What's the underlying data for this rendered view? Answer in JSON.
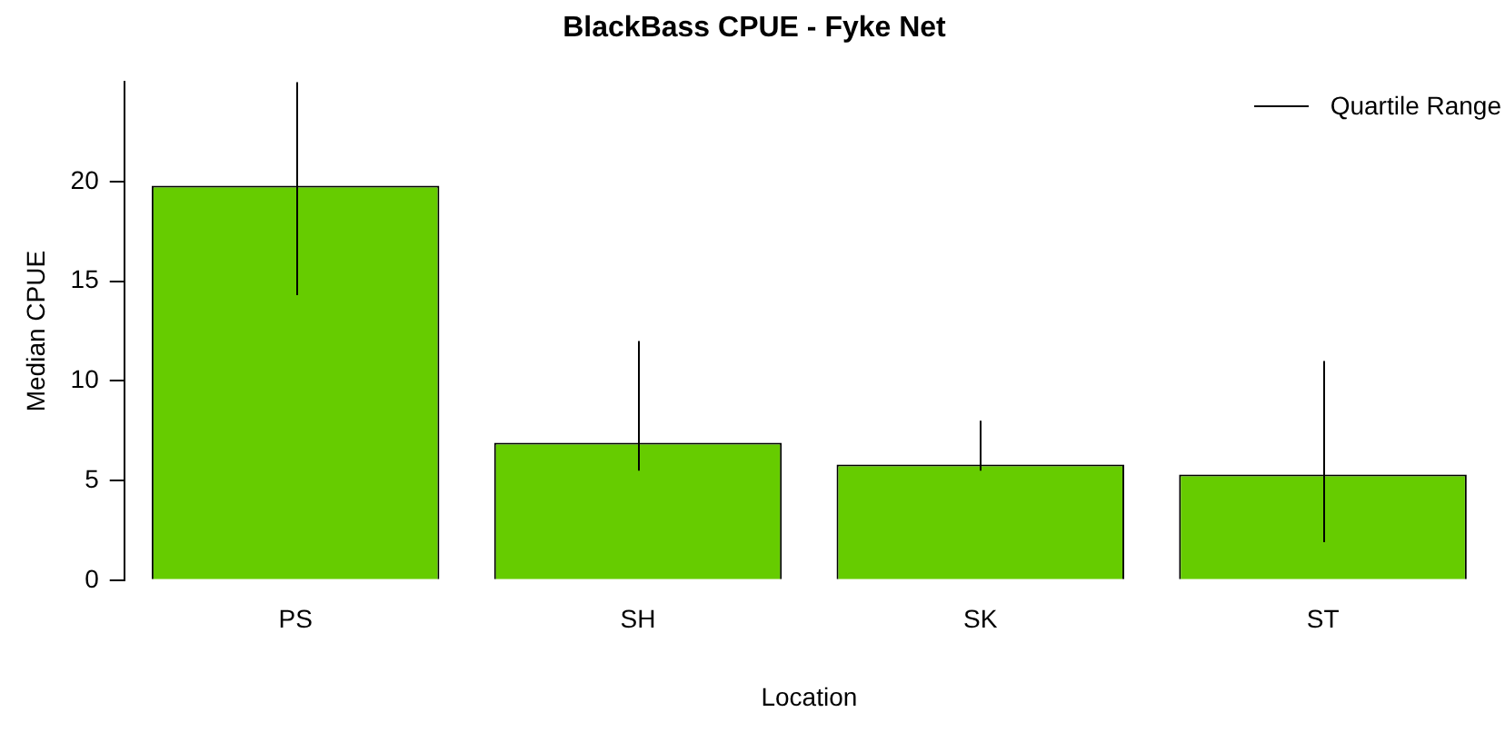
{
  "chart_data": {
    "type": "bar",
    "title": "BlackBass CPUE - Fyke Net",
    "xlabel": "Location",
    "ylabel": "Median CPUE",
    "categories": [
      "PS",
      "SH",
      "SK",
      "ST"
    ],
    "values": [
      19.8,
      6.9,
      5.8,
      5.3
    ],
    "errors": [
      [
        14.3,
        25.0
      ],
      [
        5.5,
        12.0
      ],
      [
        5.5,
        8.0
      ],
      [
        1.9,
        11.0
      ]
    ],
    "color": "#66cc00",
    "ylim": [
      0,
      25
    ],
    "yticks": [
      0,
      5,
      10,
      15,
      20
    ],
    "grid": false,
    "annotations": [
      "Quartile Range"
    ]
  }
}
